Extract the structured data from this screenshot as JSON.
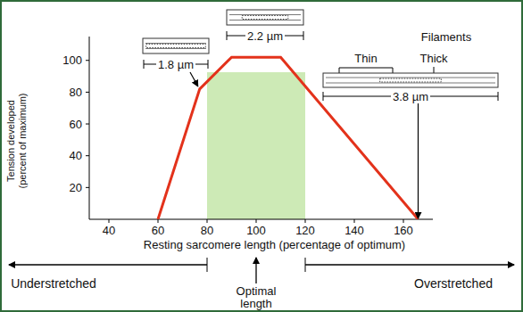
{
  "chart_data": {
    "type": "line",
    "xlabel": "Resting sarcomere length (percentage of optimum)",
    "ylabel": [
      "Tension developed",
      "(percent of maximum)"
    ],
    "x": [
      60,
      77,
      90,
      110,
      166
    ],
    "values": [
      0,
      82,
      102,
      102,
      0
    ],
    "color": "#e3321b",
    "xlim": [
      32,
      172
    ],
    "xticks": [
      40,
      60,
      80,
      100,
      120,
      140,
      160
    ],
    "ylim": [
      0,
      115
    ],
    "yticks": [
      20,
      40,
      60,
      80,
      100
    ],
    "optimal_range": [
      80,
      120
    ],
    "annotations": {
      "sarcomere_short": "1.8 µm",
      "sarcomere_optimal": "2.2 µm",
      "sarcomere_long": "3.8 µm",
      "filaments": "Filaments",
      "thin": "Thin",
      "thick": "Thick",
      "understretched": "Understretched",
      "optimal": [
        "Optimal",
        "length"
      ],
      "overstretched": "Overstretched"
    }
  }
}
